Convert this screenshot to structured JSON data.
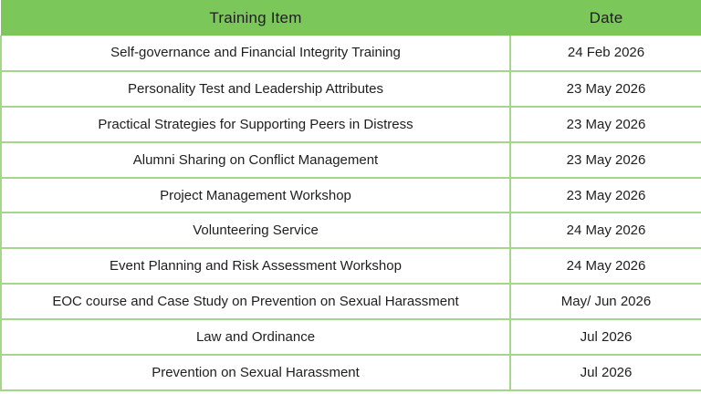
{
  "table": {
    "header": [
      "Training Item",
      "Date"
    ],
    "rows": [
      {
        "item": "Self-governance and Financial Integrity Training",
        "date": "24 Feb 2026"
      },
      {
        "item": "Personality Test and Leadership Attributes",
        "date": "23 May 2026"
      },
      {
        "item": "Practical Strategies for Supporting Peers in Distress",
        "date": "23 May 2026"
      },
      {
        "item": "Alumni Sharing on Conflict Management",
        "date": "23 May 2026"
      },
      {
        "item": "Project Management Workshop",
        "date": "23 May 2026"
      },
      {
        "item": "Volunteering Service",
        "date": "24 May 2026"
      },
      {
        "item": "Event Planning and Risk Assessment Workshop",
        "date": "24 May 2026"
      },
      {
        "item": "EOC course and Case Study on Prevention on Sexual Harassment",
        "date": "May/ Jun 2026"
      },
      {
        "item": "Law and Ordinance",
        "date": "Jul 2026"
      },
      {
        "item": "Prevention on Sexual Harassment",
        "date": "Jul 2026"
      }
    ],
    "colors": {
      "header_background": "#7cc75a",
      "cell_border": "#a6d58c",
      "text": "#1e1e1e",
      "row_background": "#ffffff"
    }
  }
}
